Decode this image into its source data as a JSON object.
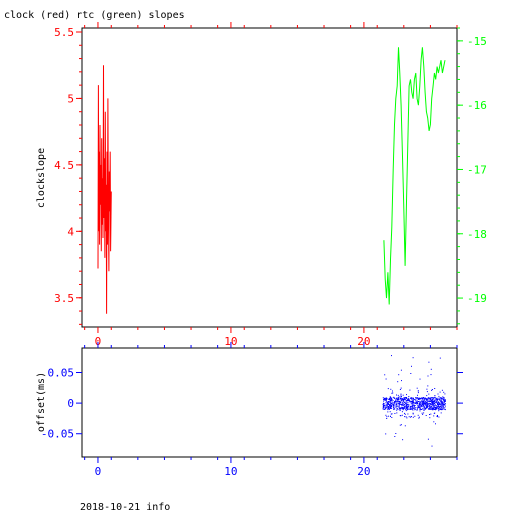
{
  "title": "clock (red) rtc (green) slopes",
  "footer": "2018-10-21 info",
  "colors": {
    "clock": "#ff0000",
    "rtc": "#00ff00",
    "offset": "#0000ff",
    "axis": "#000000"
  },
  "chart_data": [
    {
      "type": "line",
      "title": "clock (red) rtc (green) slopes",
      "ylabel": "clockslope",
      "xlim": [
        -1.2,
        27
      ],
      "ylim": [
        3.28,
        5.53
      ],
      "y2lim": [
        -19.45,
        -14.8
      ],
      "x_ticks": [
        0,
        10,
        20
      ],
      "y_ticks": [
        3.5,
        4,
        4.5,
        5,
        5.5
      ],
      "y_tick_labels": [
        "3.5",
        "4",
        "4.5",
        "5",
        "5.5"
      ],
      "y2_ticks": [
        -19,
        -18,
        -17,
        -16,
        -15
      ],
      "y2_tick_labels": [
        "-19",
        "-18",
        "-17",
        "-16",
        "-15"
      ],
      "grid": false,
      "series": [
        {
          "axis": "left",
          "color": "#ff0000",
          "x": [
            0,
            0.03,
            0.06,
            0.09,
            0.12,
            0.15,
            0.18,
            0.22,
            0.25,
            0.28,
            0.32,
            0.35,
            0.38,
            0.42,
            0.45,
            0.48,
            0.52,
            0.55,
            0.58,
            0.62,
            0.65,
            0.68,
            0.72,
            0.75,
            0.78,
            0.82,
            0.85,
            0.88,
            0.92,
            0.95,
            1.0
          ],
          "y": [
            3.72,
            5.1,
            4.0,
            4.6,
            3.9,
            4.8,
            4.2,
            4.5,
            3.85,
            4.7,
            4.05,
            4.4,
            3.95,
            5.25,
            4.1,
            4.55,
            3.8,
            4.9,
            4.0,
            4.35,
            3.38,
            4.6,
            3.9,
            5.0,
            4.25,
            3.7,
            4.45,
            4.15,
            4.6,
            3.85,
            4.3
          ]
        },
        {
          "axis": "right",
          "color": "#00ff00",
          "x": [
            21.5,
            21.6,
            21.7,
            21.8,
            21.9,
            22.0,
            22.1,
            22.2,
            22.3,
            22.4,
            22.5,
            22.6,
            22.7,
            22.8,
            22.9,
            23.0,
            23.1,
            23.2,
            23.3,
            23.4,
            23.5,
            23.6,
            23.7,
            23.8,
            23.9,
            24.0,
            24.1,
            24.2,
            24.3,
            24.4,
            24.5,
            24.6,
            24.7,
            24.8,
            24.9,
            25.0,
            25.1,
            25.2,
            25.3,
            25.4,
            25.5,
            25.6,
            25.7,
            25.8,
            25.9,
            26.0,
            26.1
          ],
          "y": [
            -18.1,
            -18.7,
            -19.0,
            -18.6,
            -19.1,
            -18.4,
            -17.9,
            -17.0,
            -16.3,
            -15.9,
            -15.7,
            -15.1,
            -15.5,
            -16.0,
            -16.8,
            -17.6,
            -18.5,
            -17.5,
            -16.6,
            -15.7,
            -15.6,
            -15.8,
            -15.9,
            -15.6,
            -15.5,
            -15.9,
            -16.0,
            -15.7,
            -15.3,
            -15.1,
            -15.4,
            -15.8,
            -16.1,
            -16.2,
            -16.4,
            -16.3,
            -15.9,
            -15.7,
            -15.5,
            -15.6,
            -15.4,
            -15.5,
            -15.4,
            -15.3,
            -15.5,
            -15.4,
            -15.3
          ]
        }
      ]
    },
    {
      "type": "scatter",
      "ylabel": "offset(ms)",
      "xlim": [
        -1.2,
        27
      ],
      "ylim": [
        -0.088,
        0.09
      ],
      "x_ticks": [
        0,
        10,
        20
      ],
      "y_ticks": [
        -0.05,
        0,
        0.05
      ],
      "y_tick_labels": [
        "-0.05",
        "0",
        "0.05"
      ],
      "grid": false,
      "series": [
        {
          "color": "#0000ff",
          "x_range": [
            21.4,
            26.1
          ],
          "center": 0.0,
          "dense_spread": 0.01,
          "outlier_range": [
            -0.07,
            0.08
          ]
        }
      ]
    }
  ]
}
